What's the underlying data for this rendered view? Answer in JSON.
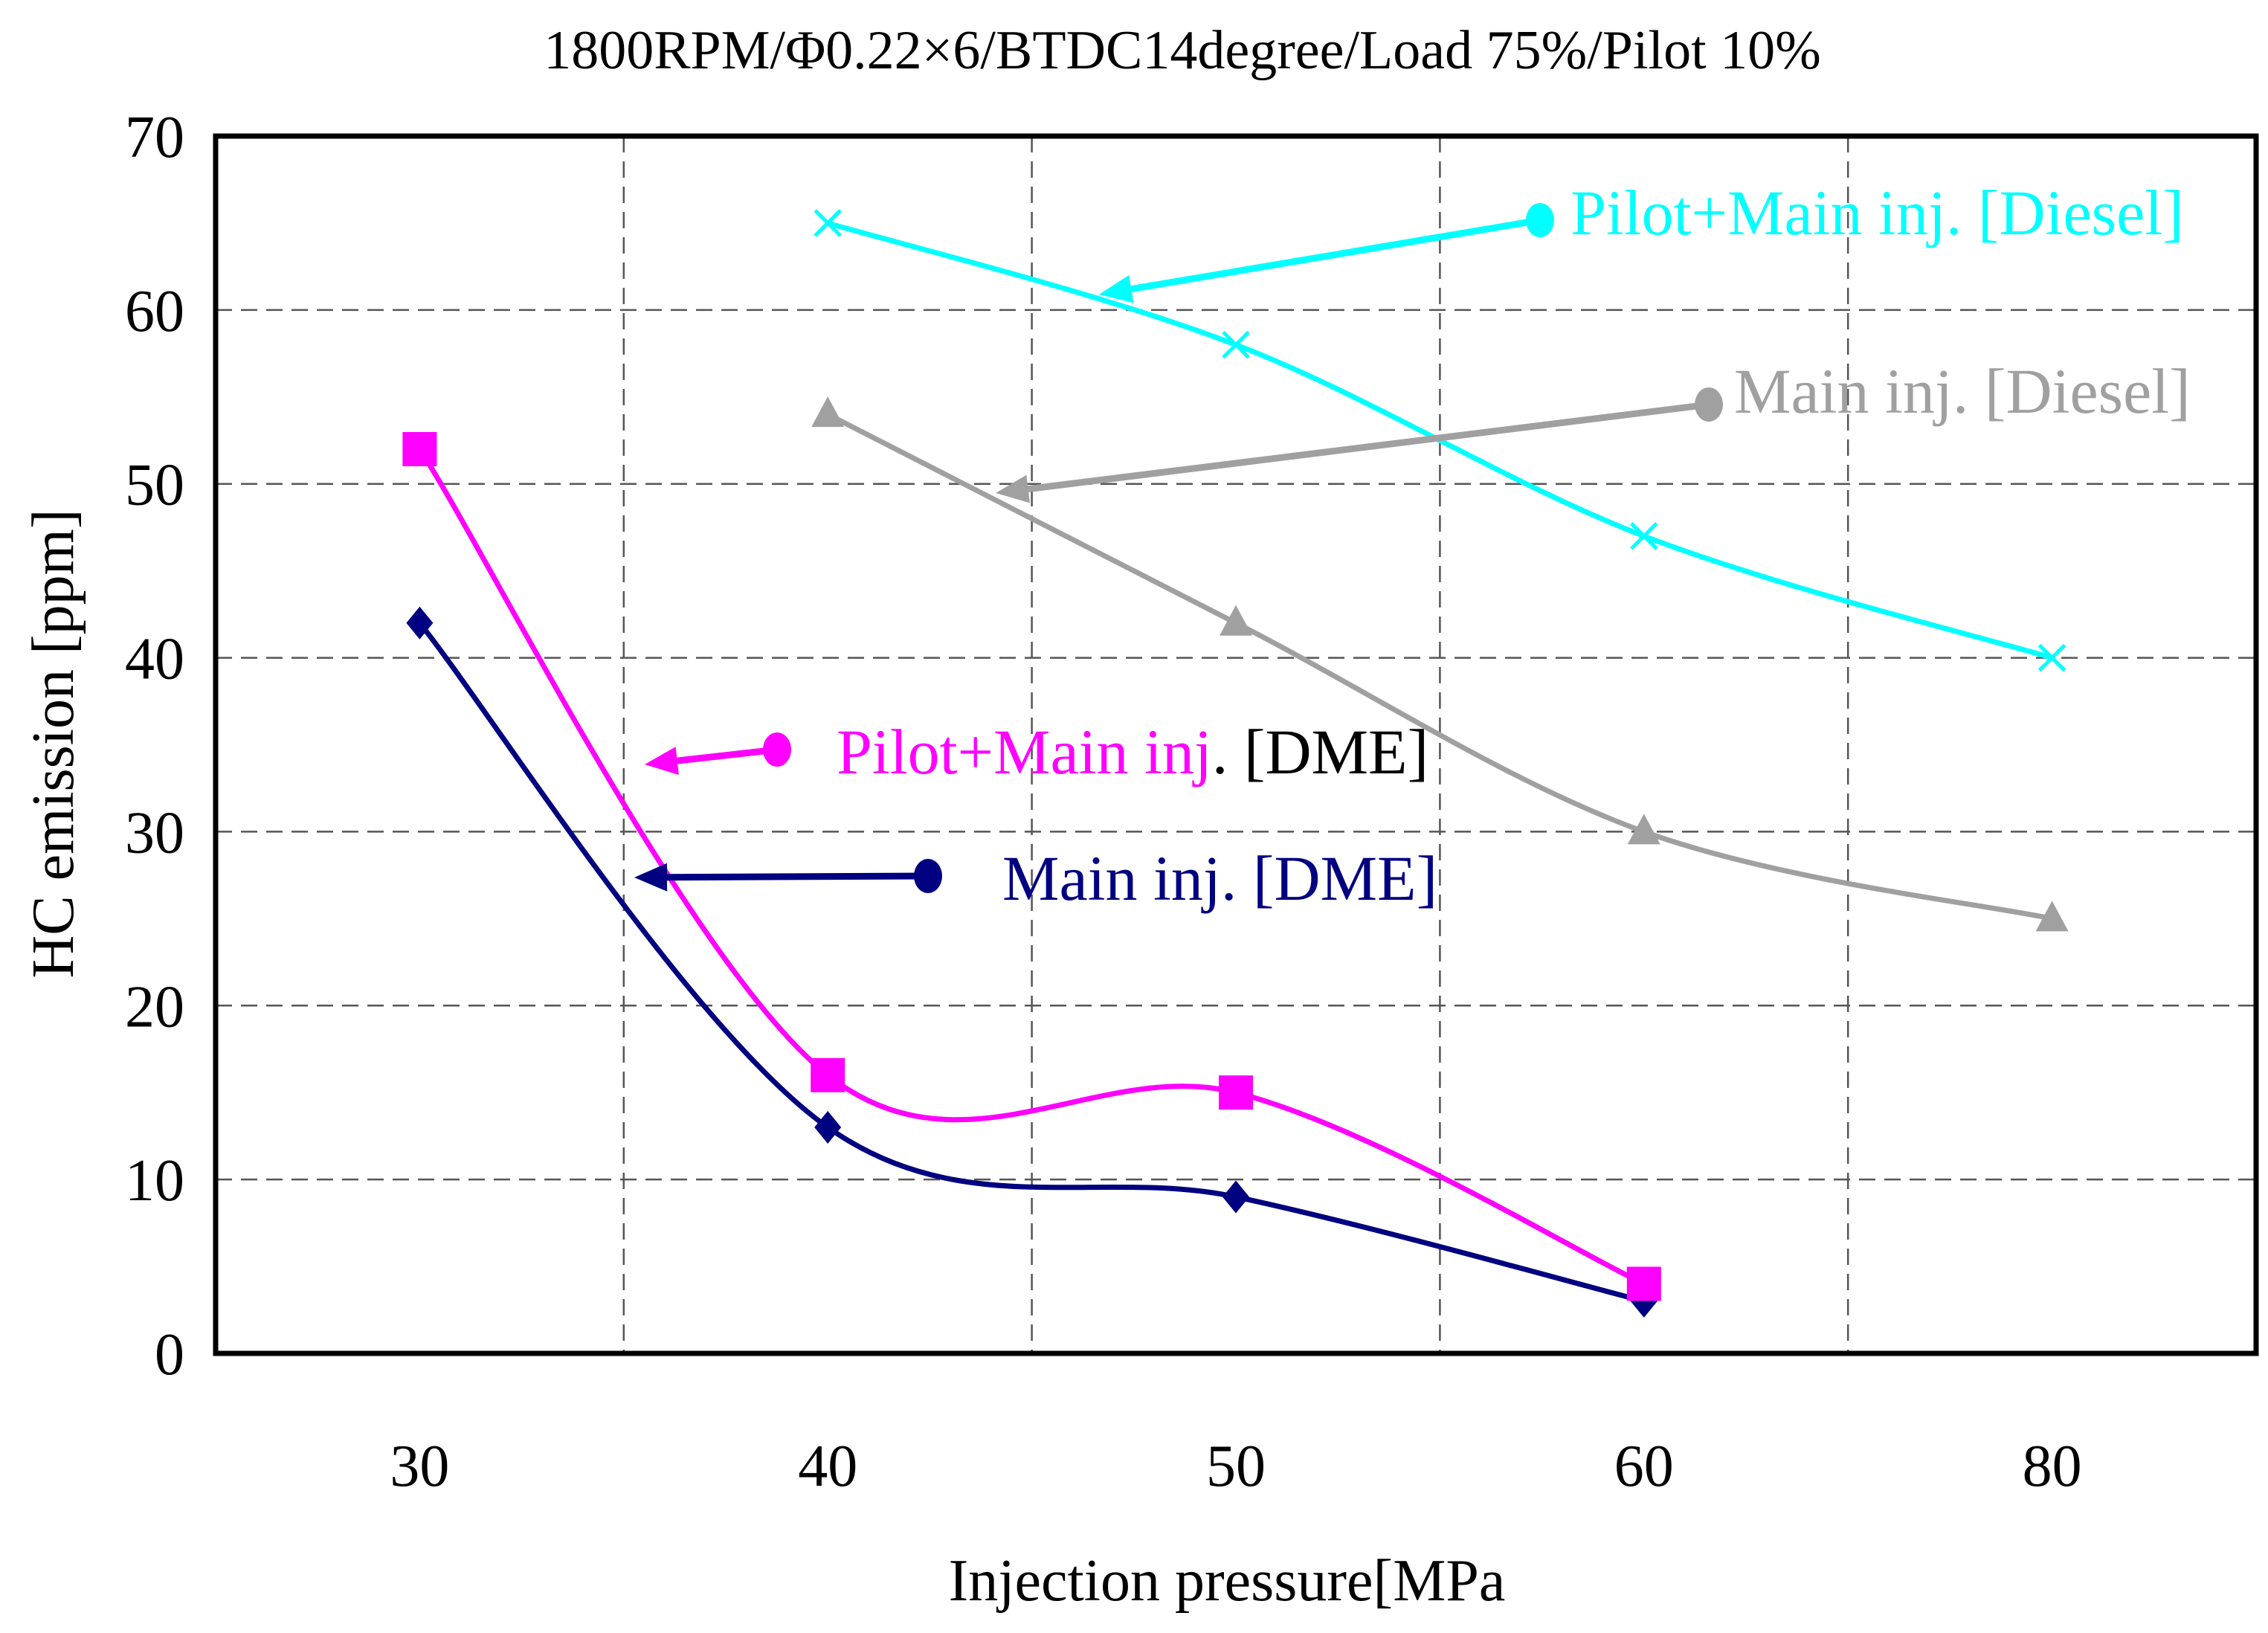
{
  "chart_data": {
    "type": "line",
    "title": "1800RPM/Φ0.22×6/BTDC14degree/Load 75%/Pilot 10%",
    "xlabel": "Injection pressure[MPa",
    "ylabel": "HC emission [ppm]",
    "categories": [
      "30",
      "40",
      "50",
      "60",
      "80"
    ],
    "ylim": [
      0,
      70
    ],
    "yticks": [
      0,
      10,
      20,
      30,
      40,
      50,
      60,
      70
    ],
    "grid": "dashed",
    "series": [
      {
        "name": "Pilot+Main inj. [Diesel]",
        "color": "#00FFFF",
        "marker": "x",
        "values": [
          null,
          65,
          58,
          47,
          40
        ]
      },
      {
        "name": "Main inj. [Diesel]",
        "color": "#A0A0A0",
        "marker": "triangle",
        "values": [
          null,
          54,
          42,
          30,
          25
        ]
      },
      {
        "name": "Pilot+Main inj. [DME]",
        "color": "#FF00FF",
        "marker": "square",
        "values": [
          52,
          16,
          15,
          4,
          null
        ]
      },
      {
        "name": "Main inj. [DME]",
        "color": "#000080",
        "marker": "diamond",
        "values": [
          42,
          13,
          9,
          3,
          null
        ]
      }
    ],
    "annotations": [
      {
        "series": 0,
        "text": "Pilot+Main inj. [Diesel]",
        "text_color": "#00FFFF"
      },
      {
        "series": 1,
        "text": "Main inj. [Diesel]",
        "text_color": "#A0A0A0"
      },
      {
        "series": 2,
        "text": "Pilot+Main inj",
        "suffix": ". [DME]",
        "text_color": "#FF00FF",
        "suffix_color": "#000000"
      },
      {
        "series": 3,
        "text": "Main inj. [DME]",
        "text_color": "#000080"
      }
    ]
  }
}
